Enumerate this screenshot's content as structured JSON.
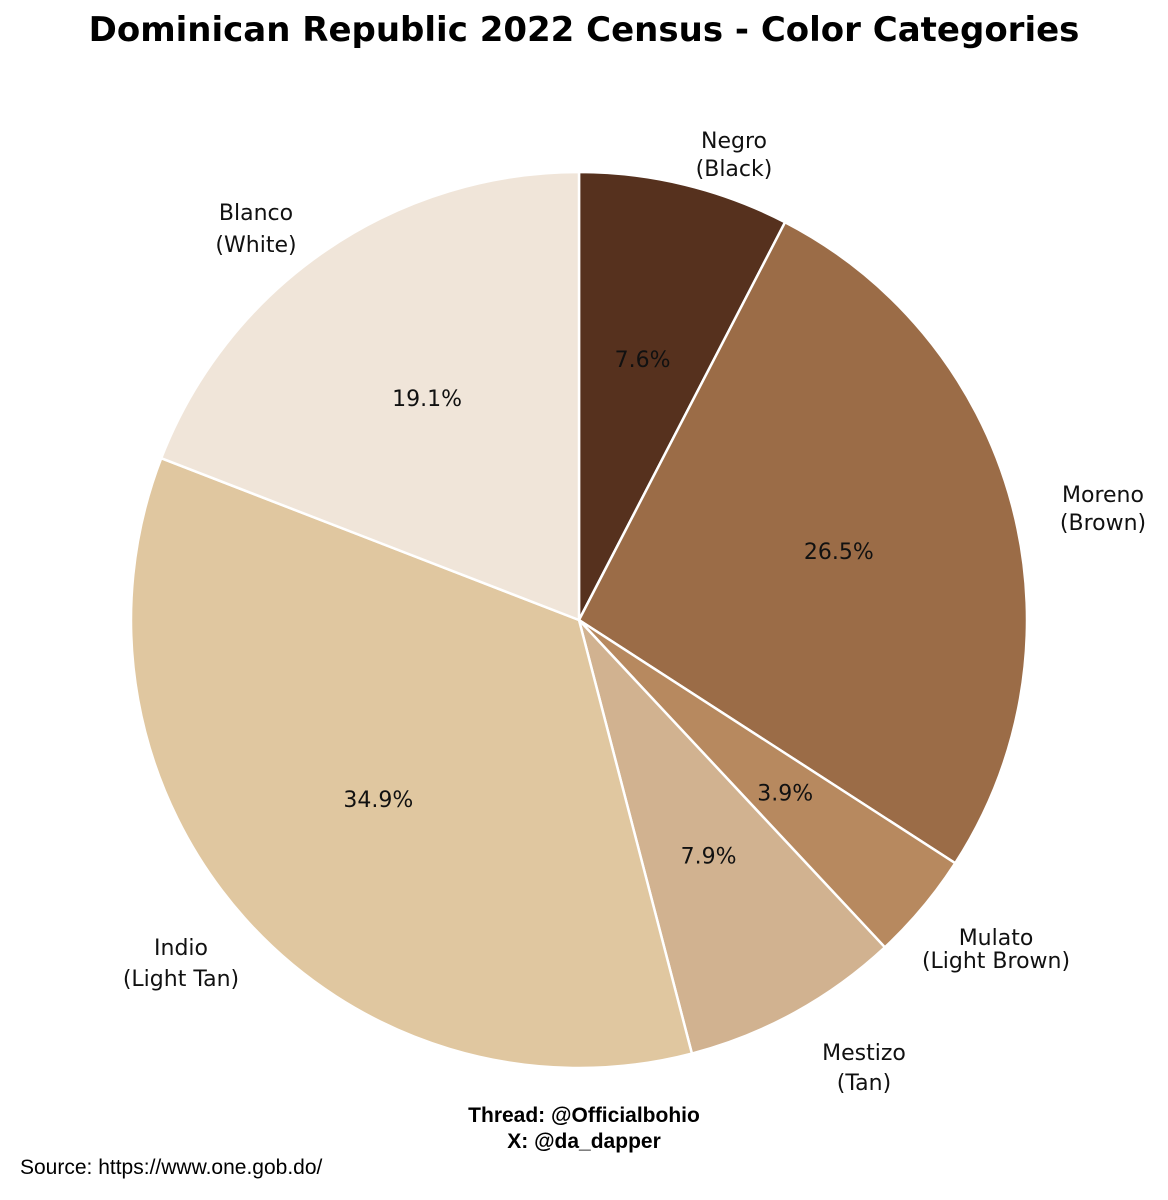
{
  "chart_data": {
    "type": "pie",
    "title": "Dominican Republic 2022 Census - Color Categories",
    "start_angle_deg": 0,
    "direction": "clockwise",
    "slices": [
      {
        "name": "Negro",
        "sub": "(Black)",
        "value": 7.6,
        "label": "7.6%",
        "color": "#56311E"
      },
      {
        "name": "Moreno",
        "sub": "(Brown)",
        "value": 26.5,
        "label": "26.5%",
        "color": "#9B6C47"
      },
      {
        "name": "Mulato",
        "sub": "(Light Brown)",
        "value": 3.9,
        "label": "3.9%",
        "color": "#B7895F"
      },
      {
        "name": "Mestizo",
        "sub": "(Tan)",
        "value": 7.9,
        "label": "7.9%",
        "color": "#D1B290"
      },
      {
        "name": "Indio",
        "sub": "(Light Tan)",
        "value": 34.9,
        "label": "34.9%",
        "color": "#E0C7A0"
      },
      {
        "name": "Blanco",
        "sub": "(White)",
        "value": 19.1,
        "label": "19.1%",
        "color": "#F0E5D9"
      }
    ]
  },
  "credits": {
    "thread": "Thread: @Officialbohio",
    "x": "X: @da_dapper"
  },
  "source": "Source: https://www.one.gob.do/"
}
